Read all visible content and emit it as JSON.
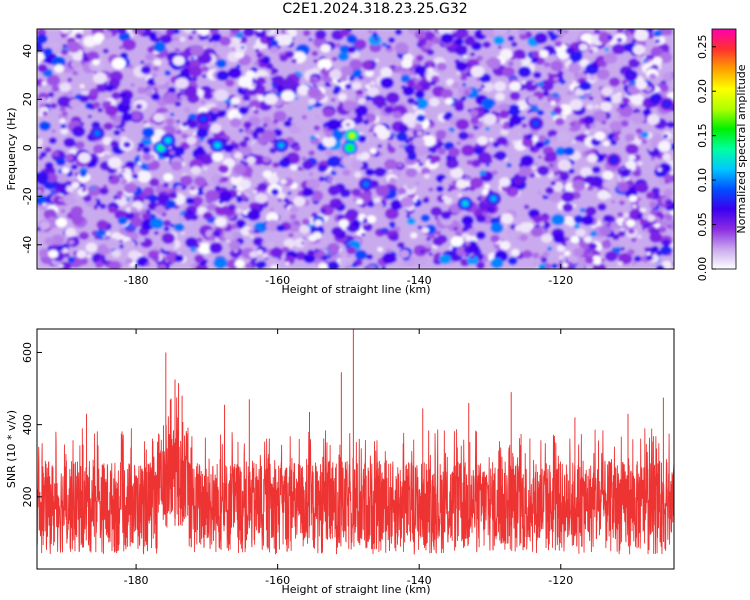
{
  "figure": {
    "title": "C2E1.2024.318.23.25.G32"
  },
  "chart_data": [
    {
      "type": "heatmap",
      "xlabel": "Height of straight line (km)",
      "ylabel": "Frequency (Hz)",
      "x_ticks": [
        "-180",
        "-160",
        "-140",
        "-120"
      ],
      "x_tick_values": [
        -180,
        -160,
        -140,
        -120
      ],
      "y_ticks": [
        "-40",
        "-20",
        "0",
        "20",
        "40"
      ],
      "y_tick_values": [
        -40,
        -20,
        0,
        20,
        40
      ],
      "xlim": [
        -194,
        -104
      ],
      "ylim": [
        -50,
        49
      ],
      "colorbar": {
        "label": "Normalized spectral amplitude",
        "ticks": [
          "0.00",
          "0.05",
          "0.10",
          "0.15",
          "0.20",
          "0.25"
        ],
        "tick_values": [
          0,
          0.05,
          0.1,
          0.15,
          0.2,
          0.25
        ],
        "range": [
          0,
          0.27
        ],
        "colors": [
          "#ffffff",
          "#c9a8ee",
          "#8a2be2",
          "#3a00f0",
          "#0050ff",
          "#00c8ff",
          "#00ffa0",
          "#00f000",
          "#b0ff00",
          "#ffff00",
          "#ffa000",
          "#ff3030",
          "#ff00b0"
        ]
      },
      "hotspots": [
        {
          "x": -149.5,
          "y": 5,
          "value": 0.19
        },
        {
          "x": -149.8,
          "y": 0,
          "value": 0.16
        },
        {
          "x": -176.5,
          "y": 0,
          "value": 0.14
        },
        {
          "x": -175.5,
          "y": 3,
          "value": 0.12
        },
        {
          "x": -168.5,
          "y": 1,
          "value": 0.12
        },
        {
          "x": -159.5,
          "y": 1,
          "value": 0.11
        },
        {
          "x": -133.5,
          "y": -23,
          "value": 0.12
        },
        {
          "x": -129.5,
          "y": -21,
          "value": 0.11
        },
        {
          "x": -185.5,
          "y": 6,
          "value": 0.1
        },
        {
          "x": -170.5,
          "y": 12,
          "value": 0.09
        },
        {
          "x": -147.5,
          "y": -15,
          "value": 0.1
        },
        {
          "x": -123.5,
          "y": 10,
          "value": 0.09
        },
        {
          "x": -112.5,
          "y": -5,
          "value": 0.08
        },
        {
          "x": -105.0,
          "y": 18,
          "value": 0.08
        }
      ],
      "background_level": 0.04
    },
    {
      "type": "line",
      "xlabel": "Height of straight line (km)",
      "ylabel": "SNR (10 * v/v)",
      "x_ticks": [
        "-180",
        "-160",
        "-140",
        "-120"
      ],
      "x_tick_values": [
        -180,
        -160,
        -140,
        -120
      ],
      "y_ticks": [
        "200",
        "400",
        "600"
      ],
      "y_tick_values": [
        200,
        400,
        600
      ],
      "xlim": [
        -194,
        -104
      ],
      "ylim": [
        0,
        665
      ],
      "color": "#ee3333",
      "noise_floor_range": [
        40,
        300
      ],
      "peaks": [
        {
          "x": -149.3,
          "y": 665
        },
        {
          "x": -175.8,
          "y": 600
        },
        {
          "x": -174.5,
          "y": 525
        },
        {
          "x": -174.0,
          "y": 515
        },
        {
          "x": -173.5,
          "y": 480
        },
        {
          "x": -164.0,
          "y": 470
        },
        {
          "x": -151.0,
          "y": 545
        },
        {
          "x": -127.0,
          "y": 490
        },
        {
          "x": -105.5,
          "y": 475
        },
        {
          "x": -187.0,
          "y": 430
        },
        {
          "x": -167.5,
          "y": 455
        },
        {
          "x": -139.5,
          "y": 445
        },
        {
          "x": -133.0,
          "y": 460
        },
        {
          "x": -110.5,
          "y": 430
        },
        {
          "x": -118.0,
          "y": 420
        },
        {
          "x": -155.5,
          "y": 435
        }
      ]
    }
  ]
}
